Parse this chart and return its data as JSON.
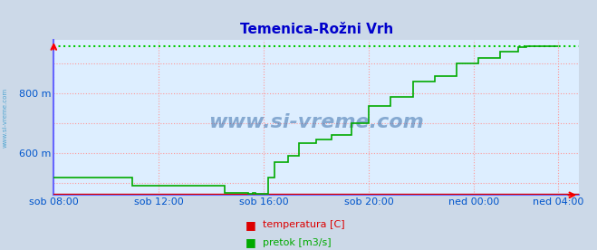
{
  "title": "Temenica-Rožni Vrh",
  "title_color": "#0000cc",
  "bg_color": "#ccd9e8",
  "plot_bg_color": "#ddeeff",
  "y_label_color": "#0055cc",
  "x_label_color": "#0055cc",
  "yticks": [
    600,
    800
  ],
  "ytick_labels": [
    "600 m",
    "800 m"
  ],
  "ylim_min": 460,
  "ylim_max": 980,
  "xlim_start": 0,
  "xlim_end": 1200,
  "xtick_positions": [
    0,
    240,
    480,
    720,
    960,
    1152
  ],
  "xtick_labels": [
    "sob 08:00",
    "sob 12:00",
    "sob 16:00",
    "sob 20:00",
    "ned 00:00",
    "ned 04:00"
  ],
  "grid_color": "#ff9999",
  "spine_color": "#6666ff",
  "watermark": "www.si-vreme.com",
  "watermark_color": "#1a5599",
  "watermark_alpha": 0.45,
  "side_watermark_color": "#3399cc",
  "legend_items": [
    {
      "label": "temperatura [C]",
      "color": "#dd0000"
    },
    {
      "label": "pretok [m3/s]",
      "color": "#00aa00"
    }
  ],
  "red_line_y": 463,
  "max_line_y": 960,
  "max_line_color": "#00cc00",
  "pretok_x": [
    0,
    180,
    180,
    390,
    390,
    445,
    445,
    455,
    455,
    460,
    460,
    475,
    475,
    490,
    490,
    505,
    505,
    535,
    535,
    560,
    560,
    600,
    600,
    635,
    635,
    680,
    680,
    720,
    720,
    770,
    770,
    820,
    820,
    870,
    870,
    920,
    920,
    970,
    970,
    1020,
    1020,
    1060,
    1060,
    1080,
    1080,
    1152
  ],
  "pretok_y": [
    520,
    520,
    492,
    492,
    468,
    468,
    464,
    464,
    468,
    468,
    465,
    465,
    463,
    463,
    520,
    520,
    570,
    570,
    590,
    590,
    635,
    635,
    645,
    645,
    660,
    660,
    700,
    700,
    760,
    760,
    790,
    790,
    840,
    840,
    860,
    860,
    900,
    900,
    920,
    920,
    940,
    940,
    955,
    955,
    960,
    960
  ]
}
